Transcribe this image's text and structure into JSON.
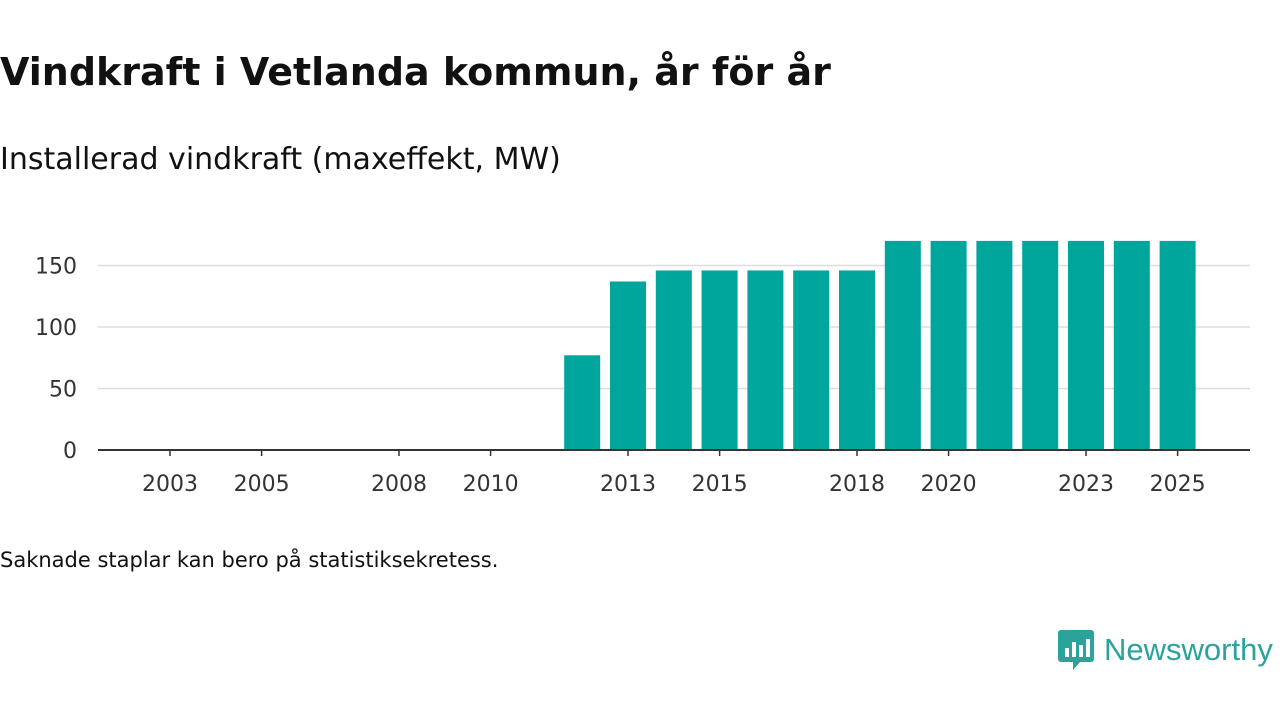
{
  "title": "Vindkraft i Vetlanda kommun, år för år",
  "subtitle": "Installerad vindkraft (maxeffekt, MW)",
  "note": "Saknade staplar kan bero på statistiksekretess.",
  "brand": "Newsworthy",
  "colors": {
    "bar": "#00a59b",
    "grid": "#dddddd",
    "axis": "#333333",
    "brand": "#2aa39a"
  },
  "chart_data": {
    "type": "bar",
    "title": "Vindkraft i Vetlanda kommun, år för år",
    "ylabel": "Installerad vindkraft (maxeffekt, MW)",
    "xlabel": "",
    "categories": [
      2003,
      2004,
      2005,
      2006,
      2007,
      2008,
      2009,
      2010,
      2011,
      2012,
      2013,
      2014,
      2015,
      2016,
      2017,
      2018,
      2019,
      2020,
      2021,
      2022,
      2023,
      2024,
      2025
    ],
    "values": [
      0,
      0,
      0,
      0,
      0,
      0,
      0,
      0,
      0,
      77,
      137,
      146,
      146,
      146,
      146,
      146,
      170,
      170,
      170,
      170,
      170,
      170,
      170
    ],
    "x_tick_labels": [
      "2003",
      "2005",
      "2008",
      "2010",
      "2013",
      "2015",
      "2018",
      "2020",
      "2023",
      "2025"
    ],
    "y_ticks": [
      0,
      50,
      100,
      150
    ],
    "ylim": [
      0,
      170
    ],
    "grid": true
  }
}
